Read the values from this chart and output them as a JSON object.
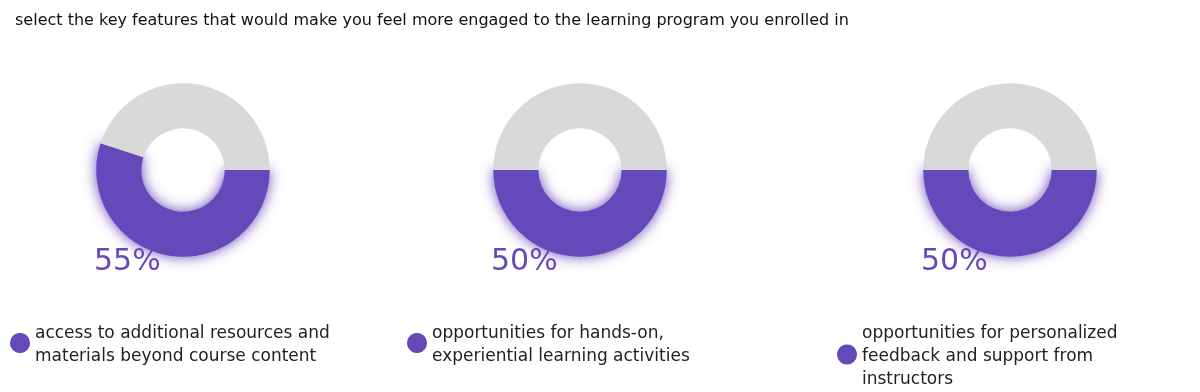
{
  "chart_data": [
    {
      "type": "donut",
      "title": "select the key features that would make you feel more engaged to the learning program you enrolled in",
      "categories": [
        "access to additional resources and materials beyond course content",
        null
      ],
      "values": [
        55,
        45
      ],
      "colors": [
        "#6449b9",
        "#d9d9d9"
      ],
      "value_labels": [
        "55%",
        null
      ],
      "legend": "bottom"
    },
    {
      "type": "donut",
      "categories": [
        "opportunities for hands-on, experiential learning activities",
        null
      ],
      "values": [
        50,
        50
      ],
      "colors": [
        "#6449b9",
        "#d9d9d9"
      ],
      "value_labels": [
        "50%",
        null
      ],
      "legend": "bottom"
    },
    {
      "type": "donut",
      "categories": [
        "opportunities for personalized feedback and support from instructors",
        null
      ],
      "values": [
        50,
        50
      ],
      "colors": [
        "#6449b9",
        "#d9d9d9"
      ],
      "value_labels": [
        "50%",
        null
      ],
      "legend": "bottom"
    }
  ]
}
